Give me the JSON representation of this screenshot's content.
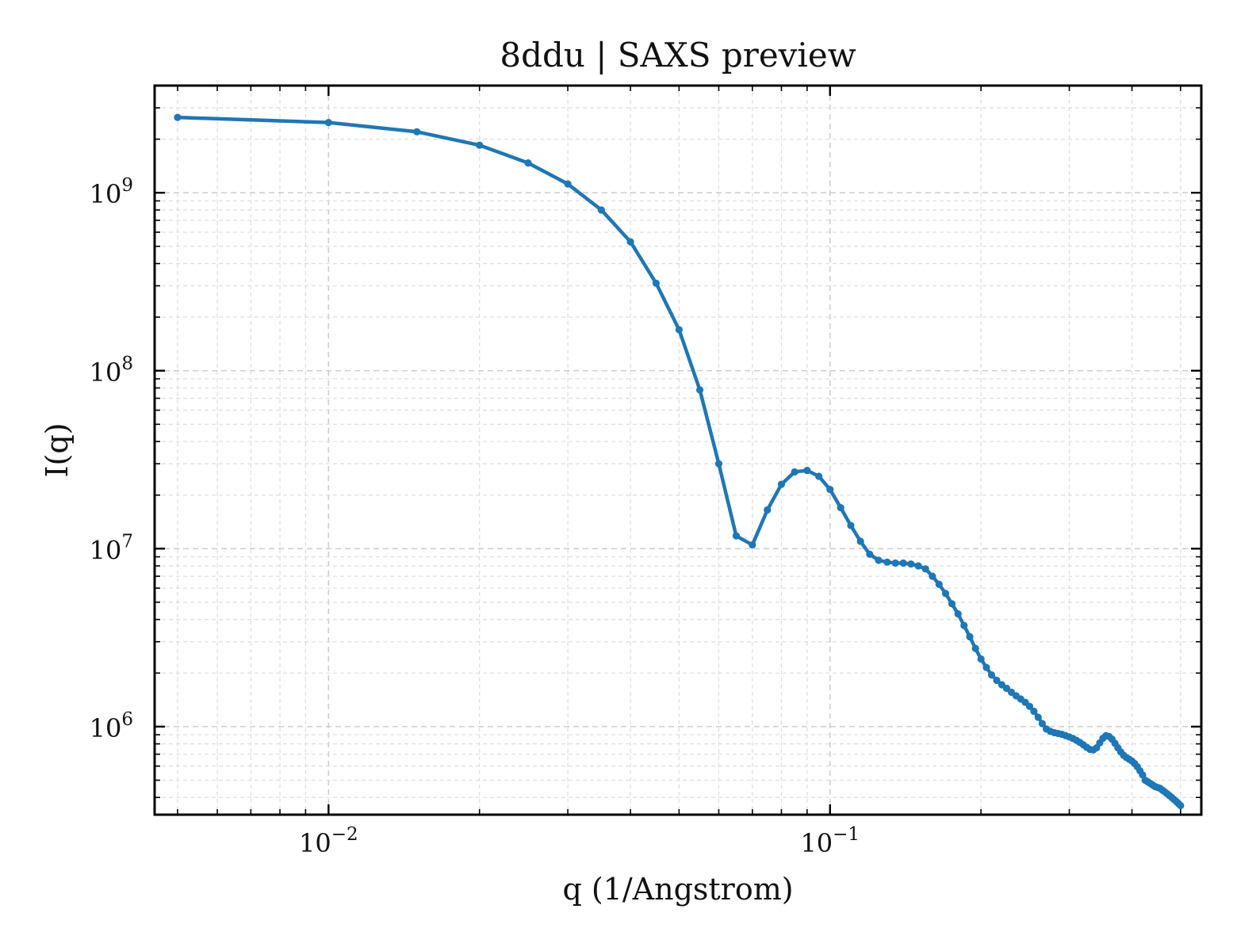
{
  "chart_data": {
    "type": "line",
    "title": "8ddu | SAXS preview",
    "xlabel": "q (1/Angstrom)",
    "ylabel": "I(q)",
    "xscale": "log",
    "yscale": "log",
    "xlim": [
      0.0045,
      0.55
    ],
    "ylim": [
      320000,
      4000000000
    ],
    "grid": true,
    "color": "#1f77b4",
    "x_ticks": [
      {
        "base": "10",
        "exp": "−2",
        "value": 0.01
      },
      {
        "base": "10",
        "exp": "−1",
        "value": 0.1
      }
    ],
    "y_ticks": [
      {
        "base": "10",
        "exp": "6",
        "value": 1000000
      },
      {
        "base": "10",
        "exp": "7",
        "value": 10000000
      },
      {
        "base": "10",
        "exp": "8",
        "value": 100000000
      },
      {
        "base": "10",
        "exp": "9",
        "value": 1000000000
      }
    ],
    "series": [
      {
        "x": [
          0.005,
          0.01,
          0.015,
          0.02,
          0.025,
          0.03,
          0.035,
          0.04,
          0.045,
          0.05,
          0.055,
          0.06,
          0.065,
          0.07,
          0.075,
          0.08,
          0.085,
          0.09,
          0.095,
          0.1,
          0.105,
          0.11,
          0.115,
          0.12,
          0.125,
          0.13,
          0.135,
          0.14,
          0.145,
          0.15,
          0.155,
          0.16,
          0.165,
          0.17,
          0.175,
          0.18,
          0.185,
          0.19,
          0.195,
          0.2,
          0.205,
          0.21,
          0.215,
          0.22,
          0.225,
          0.23,
          0.235,
          0.24,
          0.245,
          0.25,
          0.255,
          0.26,
          0.265,
          0.27,
          0.275,
          0.28,
          0.285,
          0.29,
          0.295,
          0.3,
          0.305,
          0.31,
          0.315,
          0.32,
          0.325,
          0.33,
          0.335,
          0.34,
          0.345,
          0.35,
          0.355,
          0.36,
          0.365,
          0.37,
          0.375,
          0.38,
          0.385,
          0.39,
          0.395,
          0.4,
          0.405,
          0.41,
          0.415,
          0.42,
          0.425,
          0.43,
          0.435,
          0.44,
          0.445,
          0.45,
          0.455,
          0.46,
          0.465,
          0.47,
          0.475,
          0.48,
          0.485,
          0.49,
          0.495,
          0.5
        ],
        "y": [
          2650000000,
          2480000000,
          2200000000,
          1850000000,
          1470000000,
          1120000000,
          800000000,
          530000000,
          310000000,
          170000000,
          78000000,
          30000000,
          11800000,
          10500000,
          16500000,
          23000000,
          27000000,
          27500000,
          25500000,
          21500000,
          17000000,
          13500000,
          11000000,
          9300000,
          8600000,
          8400000,
          8300000,
          8300000,
          8200000,
          8000000,
          7700000,
          7000000,
          6300000,
          5600000,
          4900000,
          4300000,
          3700000,
          3200000,
          2750000,
          2400000,
          2150000,
          1950000,
          1820000,
          1720000,
          1640000,
          1560000,
          1490000,
          1430000,
          1370000,
          1300000,
          1220000,
          1130000,
          1040000,
          970000,
          940000,
          925000,
          915000,
          905000,
          890000,
          875000,
          858000,
          838000,
          815000,
          790000,
          765000,
          745000,
          740000,
          760000,
          810000,
          860000,
          890000,
          880000,
          850000,
          805000,
          760000,
          720000,
          690000,
          670000,
          655000,
          640000,
          620000,
          595000,
          565000,
          535000,
          500000,
          490000,
          480000,
          470000,
          460000,
          455000,
          450000,
          440000,
          430000,
          420000,
          410000,
          400000,
          390000,
          380000,
          370000,
          360000
        ]
      }
    ]
  }
}
